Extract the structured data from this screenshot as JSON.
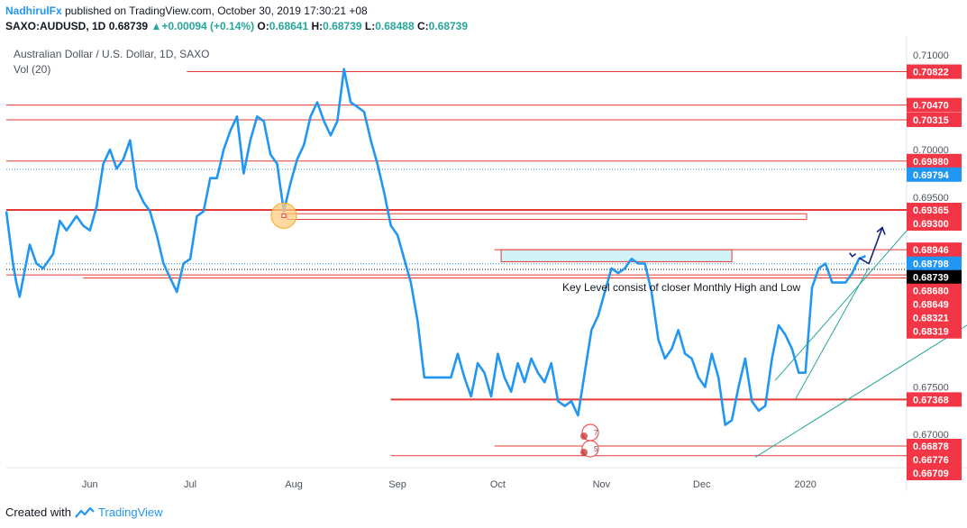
{
  "header": {
    "author": "NadhirulFx",
    "published": " published on TradingView.com, October 30, 2019 17:30:21 +08",
    "symbol": "SAXO:AUDUSD, 1D",
    "last": "0.68739",
    "change": "+0.00094 (+0.14%)",
    "o_label": "O:",
    "o_value": "0.68641",
    "h_label": "H:",
    "h_value": "0.68739",
    "l_label": "L:",
    "l_value": "0.68488",
    "c_label": "C:",
    "c_value": "0.68739"
  },
  "footer": {
    "created_with": "Created with",
    "brand": "TradingView"
  },
  "colors": {
    "price_line": "#2196f3",
    "level_line": "#e53935",
    "tag_red": "#f23645",
    "tag_blue": "#2196f3",
    "tag_black": "#000000",
    "trend_green": "#26a69a",
    "arrow_navy": "#1a237e",
    "zone_fill": "#b2ebf2"
  },
  "chart_data": {
    "type": "line",
    "title": "Australian Dollar / U.S. Dollar, 1D, SAXO",
    "indicator": "Vol (20)",
    "x_tick_labels": [
      {
        "label": "Jun",
        "date": "2019-06-01"
      },
      {
        "label": "Jul",
        "date": "2019-07-01"
      },
      {
        "label": "Aug",
        "date": "2019-08-01"
      },
      {
        "label": "Sep",
        "date": "2019-09-01"
      },
      {
        "label": "Oct",
        "date": "2019-10-01"
      },
      {
        "label": "Nov",
        "date": "2019-11-01"
      },
      {
        "label": "Dec",
        "date": "2019-12-01"
      },
      {
        "label": "2020",
        "date": "2020-01-01"
      }
    ],
    "y_ticks": [
      0.71,
      0.7,
      0.695,
      0.675,
      0.67
    ],
    "ylim": [
      0.6665,
      0.7115
    ],
    "xlim": [
      "2019-05-07",
      "2020-01-31"
    ],
    "series": [
      {
        "points": [
          [
            "2019-05-07",
            0.6935
          ],
          [
            "2019-05-09",
            0.688
          ],
          [
            "2019-05-10",
            0.686
          ],
          [
            "2019-05-11",
            0.6845
          ],
          [
            "2019-05-14",
            0.69
          ],
          [
            "2019-05-16",
            0.688
          ],
          [
            "2019-05-18",
            0.6875
          ],
          [
            "2019-05-21",
            0.689
          ],
          [
            "2019-05-23",
            0.6925
          ],
          [
            "2019-05-25",
            0.6915
          ],
          [
            "2019-05-28",
            0.693
          ],
          [
            "2019-05-30",
            0.692
          ],
          [
            "2019-06-01",
            0.6915
          ],
          [
            "2019-06-03",
            0.694
          ],
          [
            "2019-06-05",
            0.6985
          ],
          [
            "2019-06-07",
            0.7
          ],
          [
            "2019-06-09",
            0.698
          ],
          [
            "2019-06-11",
            0.699
          ],
          [
            "2019-06-13",
            0.701
          ],
          [
            "2019-06-15",
            0.696
          ],
          [
            "2019-06-17",
            0.6945
          ],
          [
            "2019-06-19",
            0.6935
          ],
          [
            "2019-06-21",
            0.691
          ],
          [
            "2019-06-23",
            0.688
          ],
          [
            "2019-06-25",
            0.6865
          ],
          [
            "2019-06-27",
            0.685
          ],
          [
            "2019-06-29",
            0.688
          ],
          [
            "2019-07-01",
            0.6885
          ],
          [
            "2019-07-03",
            0.693
          ],
          [
            "2019-07-05",
            0.6935
          ],
          [
            "2019-07-07",
            0.697
          ],
          [
            "2019-07-09",
            0.697
          ],
          [
            "2019-07-11",
            0.7
          ],
          [
            "2019-07-13",
            0.702
          ],
          [
            "2019-07-15",
            0.7035
          ],
          [
            "2019-07-17",
            0.6975
          ],
          [
            "2019-07-19",
            0.701
          ],
          [
            "2019-07-21",
            0.7035
          ],
          [
            "2019-07-23",
            0.703
          ],
          [
            "2019-07-25",
            0.6995
          ],
          [
            "2019-07-27",
            0.6985
          ],
          [
            "2019-07-29",
            0.6935
          ],
          [
            "2019-07-31",
            0.6965
          ],
          [
            "2019-08-02",
            0.699
          ],
          [
            "2019-08-04",
            0.7005
          ],
          [
            "2019-08-06",
            0.7035
          ],
          [
            "2019-08-08",
            0.705
          ],
          [
            "2019-08-10",
            0.703
          ],
          [
            "2019-08-12",
            0.7015
          ],
          [
            "2019-08-14",
            0.703
          ],
          [
            "2019-08-16",
            0.7085
          ],
          [
            "2019-08-18",
            0.705
          ],
          [
            "2019-08-20",
            0.7045
          ],
          [
            "2019-08-22",
            0.704
          ],
          [
            "2019-08-24",
            0.701
          ],
          [
            "2019-08-26",
            0.6985
          ],
          [
            "2019-08-28",
            0.6955
          ],
          [
            "2019-08-30",
            0.692
          ],
          [
            "2019-09-01",
            0.691
          ],
          [
            "2019-09-03",
            0.6885
          ],
          [
            "2019-09-05",
            0.686
          ],
          [
            "2019-09-07",
            0.682
          ],
          [
            "2019-09-09",
            0.676
          ],
          [
            "2019-09-11",
            0.676
          ],
          [
            "2019-09-13",
            0.676
          ],
          [
            "2019-09-15",
            0.676
          ],
          [
            "2019-09-17",
            0.676
          ],
          [
            "2019-09-19",
            0.6785
          ],
          [
            "2019-09-21",
            0.676
          ],
          [
            "2019-09-23",
            0.674
          ],
          [
            "2019-09-25",
            0.6775
          ],
          [
            "2019-09-27",
            0.6765
          ],
          [
            "2019-09-29",
            0.674
          ],
          [
            "2019-10-01",
            0.6785
          ],
          [
            "2019-10-03",
            0.676
          ],
          [
            "2019-10-05",
            0.6745
          ],
          [
            "2019-10-07",
            0.6775
          ],
          [
            "2019-10-09",
            0.6755
          ],
          [
            "2019-10-11",
            0.678
          ],
          [
            "2019-10-13",
            0.6765
          ],
          [
            "2019-10-15",
            0.6755
          ],
          [
            "2019-10-17",
            0.6775
          ],
          [
            "2019-10-19",
            0.6735
          ],
          [
            "2019-10-21",
            0.673
          ],
          [
            "2019-10-23",
            0.6735
          ],
          [
            "2019-10-25",
            0.672
          ],
          [
            "2019-10-27",
            0.6765
          ],
          [
            "2019-10-29",
            0.681
          ],
          [
            "2019-10-31",
            0.6825
          ],
          [
            "2019-11-02",
            0.685
          ],
          [
            "2019-11-04",
            0.6875
          ],
          [
            "2019-11-06",
            0.687
          ],
          [
            "2019-11-08",
            0.6875
          ],
          [
            "2019-11-10",
            0.6885
          ],
          [
            "2019-11-12",
            0.688
          ],
          [
            "2019-11-14",
            0.688
          ],
          [
            "2019-11-16",
            0.685
          ],
          [
            "2019-11-18",
            0.68
          ],
          [
            "2019-11-20",
            0.678
          ],
          [
            "2019-11-22",
            0.679
          ],
          [
            "2019-11-24",
            0.681
          ],
          [
            "2019-11-26",
            0.6785
          ],
          [
            "2019-11-28",
            0.678
          ],
          [
            "2019-11-30",
            0.676
          ],
          [
            "2019-12-02",
            0.675
          ],
          [
            "2019-12-04",
            0.6785
          ],
          [
            "2019-12-06",
            0.676
          ],
          [
            "2019-12-08",
            0.671
          ],
          [
            "2019-12-10",
            0.6715
          ],
          [
            "2019-12-12",
            0.675
          ],
          [
            "2019-12-14",
            0.678
          ],
          [
            "2019-12-16",
            0.6735
          ],
          [
            "2019-12-18",
            0.6725
          ],
          [
            "2019-12-20",
            0.673
          ],
          [
            "2019-12-22",
            0.678
          ],
          [
            "2019-12-24",
            0.6815
          ],
          [
            "2019-12-26",
            0.6805
          ],
          [
            "2019-12-28",
            0.679
          ],
          [
            "2019-12-30",
            0.6765
          ],
          [
            "2020-01-01",
            0.6765
          ],
          [
            "2020-01-03",
            0.6855
          ],
          [
            "2020-01-05",
            0.6875
          ],
          [
            "2020-01-07",
            0.688
          ],
          [
            "2020-01-09",
            0.686
          ],
          [
            "2020-01-11",
            0.686
          ],
          [
            "2020-01-13",
            0.686
          ],
          [
            "2020-01-15",
            0.687
          ],
          [
            "2020-01-17",
            0.6885
          ],
          [
            "2020-01-19",
            0.6888
          ]
        ]
      }
    ],
    "levels": [
      {
        "price": 0.70822,
        "label": "0.70822",
        "from": "2019-06-30"
      },
      {
        "price": 0.7047,
        "label": "0.70470",
        "from": "2019-05-07"
      },
      {
        "price": 0.70315,
        "label": "0.70315",
        "from": "2019-05-07"
      },
      {
        "price": 0.6988,
        "label": "0.69880",
        "from": "2019-05-07"
      },
      {
        "price": 0.69365,
        "label": "0.69365",
        "from": "2019-05-07",
        "thick": true
      },
      {
        "price": 0.68946,
        "label": "0.68946",
        "from": "2019-09-30"
      },
      {
        "price": 0.6868,
        "label": "0.68680",
        "from": "2019-05-07"
      },
      {
        "price": 0.68649,
        "label": "0.68649",
        "from": "2019-05-30"
      },
      {
        "price": 0.67368,
        "label": "0.67368",
        "from": "2019-08-30",
        "thick": true
      },
      {
        "price": 0.66878,
        "label": "0.66878",
        "from": "2019-09-30"
      },
      {
        "price": 0.66776,
        "label": "0.66776",
        "from": "2019-08-30"
      }
    ],
    "extra_tags": [
      {
        "price": 0.69794,
        "label": "0.69794",
        "style": "blue",
        "dotted": true
      },
      {
        "price": 0.693,
        "label": "0.69300",
        "style": "red"
      },
      {
        "price": 0.68798,
        "label": "0.68798",
        "style": "blue",
        "dotted": true
      },
      {
        "price": 0.68739,
        "label": "0.68739",
        "style": "black",
        "dotted": true
      },
      {
        "price": 0.68321,
        "label": "0.68321",
        "style": "red"
      },
      {
        "price": 0.68319,
        "label": "0.68319",
        "style": "red"
      },
      {
        "price": 0.66709,
        "label": "0.66709",
        "style": "red"
      }
    ],
    "zone": {
      "from": "2019-10-02",
      "to": "2019-12-10",
      "top": 0.68946,
      "bottom": 0.6882
    },
    "annotation": "Key Level consist of closer Monthly High and Low",
    "events": [
      {
        "label": "7"
      },
      {
        "label": "5"
      }
    ]
  }
}
